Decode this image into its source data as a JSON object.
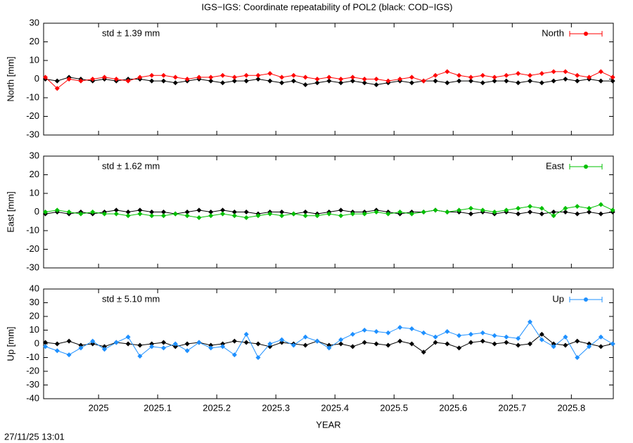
{
  "title": "IGS−IGS: Coordinate repeatability of POL2 (black: COD−IGS)",
  "footer": "27/11/25 13:01",
  "chart_data": [
    {
      "type": "line",
      "ylabel": "North [mm]",
      "annotation": "std ± 1.39 mm",
      "legend": "top-right",
      "xlim": [
        2024.907,
        2025.871
      ],
      "xticks": [
        2025,
        2025.1,
        2025.2,
        2025.3,
        2025.4,
        2025.5,
        2025.6,
        2025.7,
        2025.8
      ],
      "ylim": [
        -30,
        30
      ],
      "yticks": [
        30,
        20,
        10,
        0,
        -10,
        -20,
        -30
      ],
      "x": [
        2024.91,
        2024.93,
        2024.95,
        2024.97,
        2024.99,
        2025.01,
        2025.03,
        2025.05,
        2025.07,
        2025.09,
        2025.11,
        2025.13,
        2025.15,
        2025.17,
        2025.19,
        2025.21,
        2025.23,
        2025.25,
        2025.27,
        2025.29,
        2025.31,
        2025.33,
        2025.35,
        2025.37,
        2025.39,
        2025.41,
        2025.43,
        2025.45,
        2025.47,
        2025.49,
        2025.51,
        2025.53,
        2025.55,
        2025.57,
        2025.59,
        2025.61,
        2025.63,
        2025.65,
        2025.67,
        2025.69,
        2025.71,
        2025.73,
        2025.75,
        2025.77,
        2025.79,
        2025.81,
        2025.83,
        2025.85,
        2025.87
      ],
      "series": [
        {
          "color": "#000000",
          "values": [
            0,
            -1,
            1,
            0,
            -1,
            0,
            -1,
            0,
            0,
            -1,
            -1,
            -2,
            -1,
            0,
            -1,
            -2,
            -1,
            -1,
            0,
            -1,
            -2,
            -1,
            -3,
            -2,
            -1,
            -2,
            -1,
            -2,
            -3,
            -2,
            -1,
            -2,
            -1,
            -1,
            -2,
            -1,
            -1,
            -2,
            -1,
            -1,
            -2,
            -1,
            -2,
            -1,
            0,
            -1,
            0,
            -1,
            -1
          ]
        },
        {
          "name": "North",
          "color": "#ff0000",
          "values": [
            1,
            -5,
            0,
            -1,
            0,
            1,
            0,
            -1,
            1,
            2,
            2,
            1,
            0,
            1,
            1,
            2,
            1,
            2,
            2,
            3,
            1,
            2,
            1,
            0,
            1,
            0,
            1,
            0,
            0,
            -1,
            0,
            1,
            -1,
            2,
            4,
            2,
            1,
            2,
            1,
            2,
            3,
            2,
            3,
            4,
            4,
            2,
            1,
            4,
            1
          ]
        }
      ]
    },
    {
      "type": "line",
      "ylabel": "East [mm]",
      "annotation": "std ± 1.62 mm",
      "legend": "top-right",
      "xlim": [
        2024.907,
        2025.871
      ],
      "xticks": [
        2025,
        2025.1,
        2025.2,
        2025.3,
        2025.4,
        2025.5,
        2025.6,
        2025.7,
        2025.8
      ],
      "ylim": [
        -30,
        30
      ],
      "yticks": [
        30,
        20,
        10,
        0,
        -10,
        -20,
        -30
      ],
      "x": [
        2024.91,
        2024.93,
        2024.95,
        2024.97,
        2024.99,
        2025.01,
        2025.03,
        2025.05,
        2025.07,
        2025.09,
        2025.11,
        2025.13,
        2025.15,
        2025.17,
        2025.19,
        2025.21,
        2025.23,
        2025.25,
        2025.27,
        2025.29,
        2025.31,
        2025.33,
        2025.35,
        2025.37,
        2025.39,
        2025.41,
        2025.43,
        2025.45,
        2025.47,
        2025.49,
        2025.51,
        2025.53,
        2025.55,
        2025.57,
        2025.59,
        2025.61,
        2025.63,
        2025.65,
        2025.67,
        2025.69,
        2025.71,
        2025.73,
        2025.75,
        2025.77,
        2025.79,
        2025.81,
        2025.83,
        2025.85,
        2025.87
      ],
      "series": [
        {
          "color": "#000000",
          "values": [
            -1,
            0,
            -1,
            0,
            -1,
            0,
            1,
            0,
            1,
            0,
            0,
            -1,
            0,
            1,
            0,
            1,
            0,
            0,
            -1,
            0,
            0,
            -1,
            0,
            -1,
            0,
            1,
            0,
            0,
            1,
            0,
            -1,
            0,
            0,
            1,
            0,
            0,
            -1,
            0,
            -1,
            0,
            -1,
            0,
            -1,
            0,
            0,
            -1,
            0,
            -1,
            0
          ]
        },
        {
          "name": "East",
          "color": "#00c000",
          "values": [
            0,
            1,
            0,
            -1,
            0,
            -1,
            -1,
            -2,
            -1,
            -2,
            -2,
            -1,
            -2,
            -3,
            -2,
            -1,
            -2,
            -3,
            -2,
            -1,
            -2,
            -1,
            -2,
            -2,
            -1,
            -2,
            -1,
            -1,
            0,
            -1,
            0,
            -1,
            0,
            1,
            0,
            1,
            2,
            1,
            0,
            1,
            2,
            3,
            2,
            -2,
            2,
            3,
            2,
            4,
            1
          ]
        }
      ]
    },
    {
      "type": "line",
      "ylabel": "Up [mm]",
      "xlabel": "YEAR",
      "annotation": "std ± 5.10 mm",
      "legend": "top-right",
      "xlim": [
        2024.907,
        2025.871
      ],
      "xticks": [
        2025,
        2025.1,
        2025.2,
        2025.3,
        2025.4,
        2025.5,
        2025.6,
        2025.7,
        2025.8
      ],
      "ylim": [
        -40,
        40
      ],
      "yticks": [
        40,
        30,
        20,
        10,
        0,
        -10,
        -20,
        -30,
        -40
      ],
      "x": [
        2024.91,
        2024.93,
        2024.95,
        2024.97,
        2024.99,
        2025.01,
        2025.03,
        2025.05,
        2025.07,
        2025.09,
        2025.11,
        2025.13,
        2025.15,
        2025.17,
        2025.19,
        2025.21,
        2025.23,
        2025.25,
        2025.27,
        2025.29,
        2025.31,
        2025.33,
        2025.35,
        2025.37,
        2025.39,
        2025.41,
        2025.43,
        2025.45,
        2025.47,
        2025.49,
        2025.51,
        2025.53,
        2025.55,
        2025.57,
        2025.59,
        2025.61,
        2025.63,
        2025.65,
        2025.67,
        2025.69,
        2025.71,
        2025.73,
        2025.75,
        2025.77,
        2025.79,
        2025.81,
        2025.83,
        2025.85,
        2025.87
      ],
      "series": [
        {
          "color": "#000000",
          "values": [
            1,
            0,
            2,
            -1,
            0,
            -2,
            1,
            0,
            -1,
            0,
            1,
            -2,
            0,
            1,
            -1,
            0,
            2,
            1,
            0,
            -2,
            1,
            0,
            -1,
            2,
            -1,
            0,
            -2,
            1,
            0,
            -1,
            2,
            0,
            -6,
            1,
            0,
            -3,
            1,
            2,
            0,
            1,
            -1,
            0,
            7,
            0,
            -1,
            2,
            0,
            -2,
            0
          ]
        },
        {
          "name": "Up",
          "color": "#1e90ff",
          "values": [
            -2,
            -5,
            -8,
            -3,
            2,
            -4,
            1,
            5,
            -9,
            -2,
            -3,
            0,
            -5,
            1,
            -3,
            -2,
            -8,
            7,
            -10,
            0,
            3,
            -1,
            5,
            2,
            -3,
            3,
            7,
            10,
            9,
            8,
            12,
            11,
            8,
            5,
            9,
            6,
            7,
            8,
            6,
            5,
            4,
            16,
            3,
            -2,
            5,
            -10,
            -2,
            5,
            0
          ]
        }
      ]
    }
  ]
}
